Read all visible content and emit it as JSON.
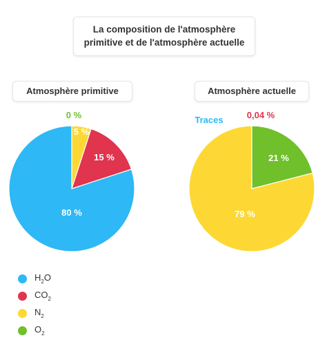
{
  "title": {
    "line1": "La composition de l'atmosphère",
    "line2": "primitive et de l'atmosphère actuelle"
  },
  "colors": {
    "H2O": "#2eb8f5",
    "CO2": "#e0344f",
    "N2": "#fdd835",
    "O2": "#6fc02b"
  },
  "legend": [
    {
      "main": "H",
      "sub": "2",
      "tail": "O",
      "color_key": "H2O",
      "icon": "h2o-dot"
    },
    {
      "main": "CO",
      "sub": "2",
      "tail": "",
      "color_key": "CO2",
      "icon": "co2-dot"
    },
    {
      "main": "N",
      "sub": "2",
      "tail": "",
      "color_key": "N2",
      "icon": "n2-dot"
    },
    {
      "main": "O",
      "sub": "2",
      "tail": "",
      "color_key": "O2",
      "icon": "o2-dot"
    }
  ],
  "chart_data": [
    {
      "type": "pie",
      "title": "Atmosphère primitive",
      "slices": [
        {
          "label": "N2",
          "value": 5,
          "display": "5 %",
          "color_key": "N2"
        },
        {
          "label": "CO2",
          "value": 15,
          "display": "15 %",
          "color_key": "CO2"
        },
        {
          "label": "H2O",
          "value": 80,
          "display": "80 %",
          "color_key": "H2O"
        },
        {
          "label": "O2",
          "value": 0,
          "display": "0 %",
          "color_key": "O2"
        }
      ]
    },
    {
      "type": "pie",
      "title": "Atmosphère actuelle",
      "slices": [
        {
          "label": "O2",
          "value": 21,
          "display": "21 %",
          "color_key": "O2"
        },
        {
          "label": "N2",
          "value": 79,
          "display": "79 %",
          "color_key": "N2"
        },
        {
          "label": "CO2",
          "value": 0.04,
          "display": "0,04 %",
          "color_key": "CO2"
        },
        {
          "label": "H2O",
          "value": 0,
          "display": "Traces",
          "color_key": "H2O"
        }
      ]
    }
  ]
}
